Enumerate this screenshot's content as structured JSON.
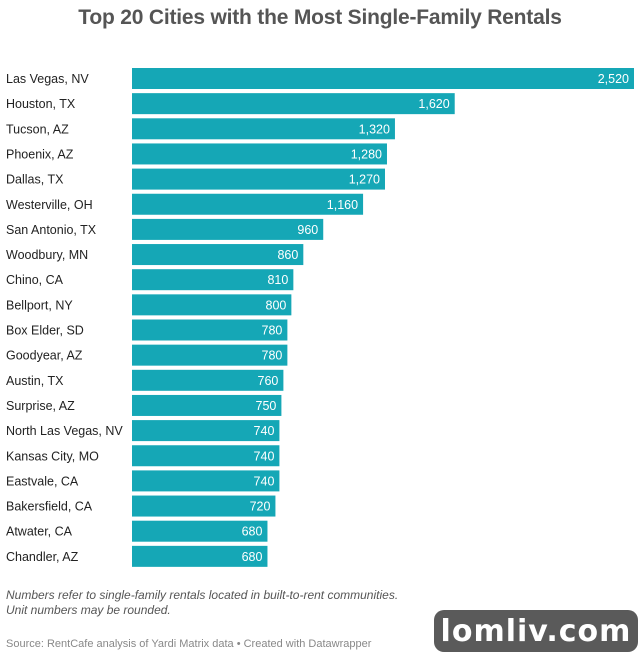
{
  "chart_data": {
    "type": "bar",
    "orientation": "horizontal",
    "title": "Top 20 Cities with the Most Single-Family Rentals",
    "categories": [
      "Las Vegas, NV",
      "Houston, TX",
      "Tucson, AZ",
      "Phoenix, AZ",
      "Dallas, TX",
      "Westerville, OH",
      "San Antonio, TX",
      "Woodbury, MN",
      "Chino, CA",
      "Bellport, NY",
      "Box Elder, SD",
      "Goodyear, AZ",
      "Austin, TX",
      "Surprise, AZ",
      "North Las Vegas, NV",
      "Kansas City, MO",
      "Eastvale, CA",
      "Bakersfield, CA",
      "Atwater, CA",
      "Chandler, AZ"
    ],
    "values": [
      2520,
      1620,
      1320,
      1280,
      1270,
      1160,
      960,
      860,
      810,
      800,
      780,
      780,
      760,
      750,
      740,
      740,
      740,
      720,
      680,
      680
    ],
    "value_labels": [
      "2,520",
      "1,620",
      "1,320",
      "1,280",
      "1,270",
      "1,160",
      "960",
      "860",
      "810",
      "800",
      "780",
      "780",
      "760",
      "750",
      "740",
      "740",
      "740",
      "720",
      "680",
      "680"
    ],
    "xlim": [
      0,
      2520
    ],
    "bar_color": "#15a7b6",
    "grid": false,
    "legend": false
  },
  "notes": [
    "Numbers refer to single-family rentals located in built-to-rent communities.",
    "Unit numbers may be rounded."
  ],
  "source": "Source: RentCafe analysis of Yardi Matrix data • Created with Datawrapper",
  "watermark": "lomliv.com"
}
